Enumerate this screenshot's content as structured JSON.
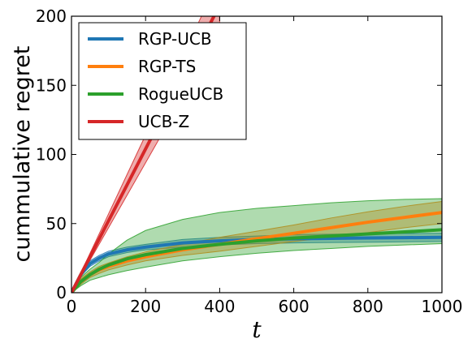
{
  "chart_data": {
    "type": "line",
    "title": "",
    "xlabel": "t",
    "ylabel": "cummulative regret",
    "xlim": [
      0,
      1000
    ],
    "ylim": [
      0,
      200
    ],
    "xticks": [
      "0",
      "200",
      "400",
      "600",
      "800",
      "1000"
    ],
    "yticks": [
      "0",
      "50",
      "100",
      "150",
      "200"
    ],
    "grid": false,
    "legend_position": "top-left",
    "series": [
      {
        "name": "RGP-UCB",
        "color": "#1f77b4",
        "x": [
          0,
          25,
          50,
          75,
          100,
          150,
          200,
          300,
          400,
          500,
          600,
          700,
          800,
          900,
          1000
        ],
        "mean": [
          0,
          13,
          21,
          25,
          28,
          31,
          33,
          36,
          37.5,
          38.5,
          39,
          39.3,
          39.6,
          39.8,
          40
        ],
        "lower": [
          0,
          12,
          19,
          23,
          26,
          29,
          31,
          33,
          34.5,
          35.5,
          36,
          36.3,
          36.5,
          36.8,
          37
        ],
        "upper": [
          0,
          14,
          23,
          27,
          30,
          33,
          35,
          38.5,
          40,
          41,
          42,
          42.3,
          42.6,
          42.8,
          43
        ]
      },
      {
        "name": "RGP-TS",
        "color": "#ff7f0e",
        "x": [
          0,
          25,
          50,
          75,
          100,
          150,
          200,
          300,
          400,
          500,
          600,
          700,
          800,
          900,
          1000
        ],
        "mean": [
          0,
          8,
          13,
          16.5,
          19,
          23,
          26,
          31,
          35,
          39,
          43,
          47,
          51,
          54.5,
          58
        ],
        "lower": [
          0,
          6,
          11,
          14,
          16.5,
          20,
          23,
          27,
          30,
          33.5,
          37,
          40,
          43.5,
          47,
          50
        ],
        "upper": [
          0,
          10,
          15,
          19,
          21.5,
          26,
          29.5,
          35,
          40,
          44.5,
          49,
          54,
          58.5,
          62.5,
          66
        ]
      },
      {
        "name": "RogueUCB",
        "color": "#2ca02c",
        "x": [
          0,
          25,
          50,
          75,
          100,
          150,
          200,
          300,
          400,
          500,
          600,
          700,
          800,
          900,
          1000
        ],
        "mean": [
          0,
          8,
          13,
          17,
          20,
          24.5,
          27.5,
          32,
          35,
          37.5,
          39.5,
          41,
          42.5,
          44,
          45.5
        ],
        "lower": [
          0,
          5,
          9,
          11,
          13,
          16,
          18.5,
          23,
          26,
          28.5,
          30.5,
          32,
          33.5,
          34.5,
          35.5
        ],
        "upper": [
          0,
          11,
          17,
          22,
          28,
          38,
          45,
          53,
          58,
          61,
          63,
          65,
          66.5,
          67.5,
          68
        ]
      },
      {
        "name": "UCB-Z",
        "color": "#d62728",
        "x": [
          0,
          100,
          200,
          300,
          400
        ],
        "mean": [
          0,
          52,
          104,
          156,
          208
        ],
        "lower": [
          0,
          47,
          94,
          141,
          188
        ],
        "upper": [
          0,
          57,
          114,
          171,
          228
        ]
      }
    ]
  }
}
